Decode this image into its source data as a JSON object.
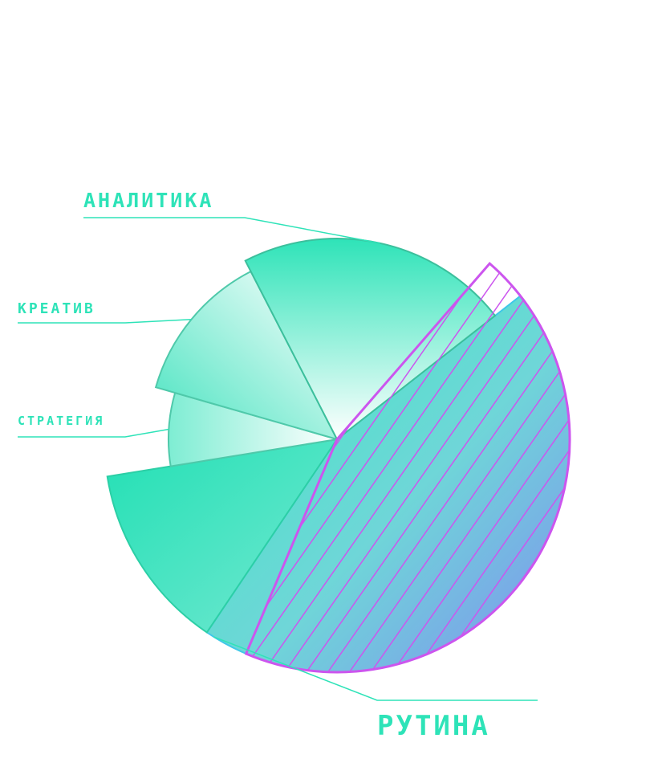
{
  "chart_data": {
    "type": "pie",
    "title": "",
    "slices": [
      {
        "label": "РУТИНА",
        "value": 45,
        "color": "#3de8c0",
        "hatch_color": "#cc55ee",
        "highlighted": true
      },
      {
        "label": "",
        "value": 13,
        "color": "#2ee3b8"
      },
      {
        "label": "СТРАТЕГИЯ",
        "value": 7,
        "color": "#7eedd3"
      },
      {
        "label": "КРЕАТИВ",
        "value": 13,
        "color": "#5fe8c8"
      },
      {
        "label": "АНАЛИТИКА",
        "value": 22,
        "color": "#34e6bd"
      }
    ],
    "label_color": "#2ee3b8"
  }
}
